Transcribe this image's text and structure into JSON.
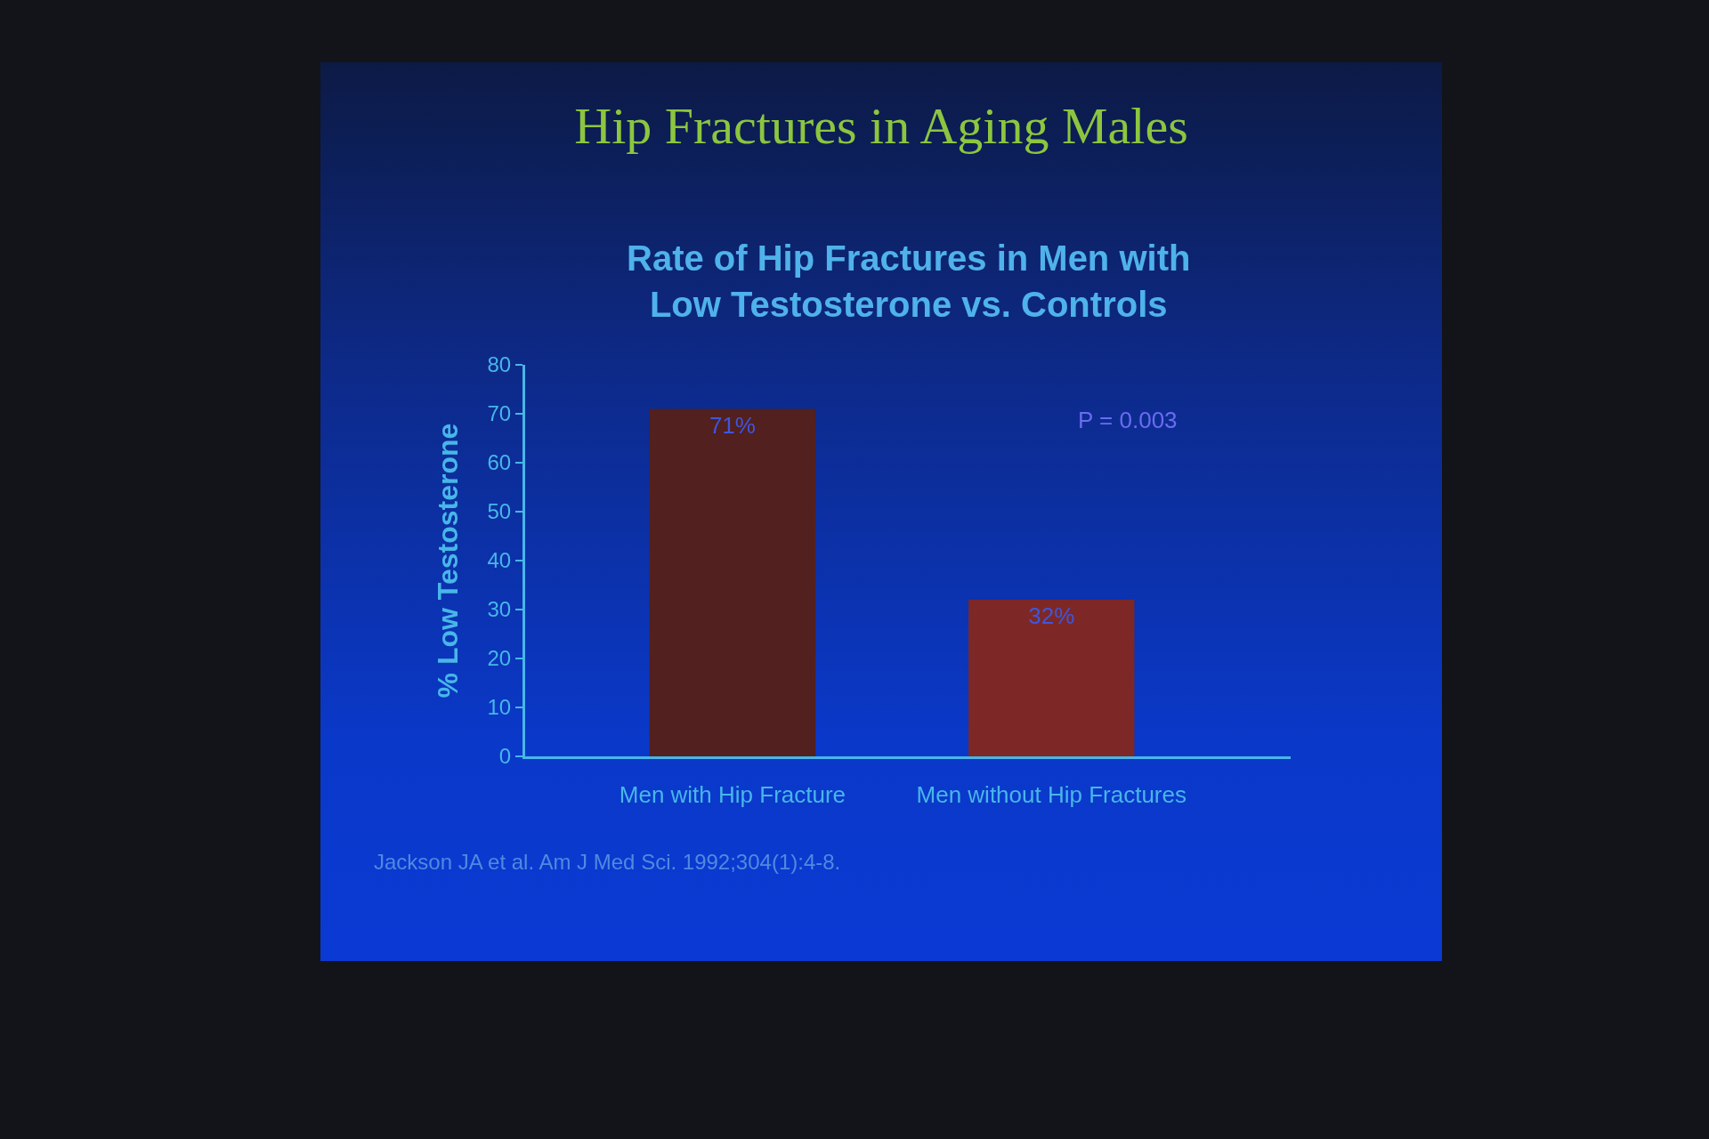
{
  "chart_data": {
    "type": "bar",
    "title": "Hip Fractures in Aging Males",
    "subtitle": "Rate of Hip Fractures in Men with Low Testosterone vs. Controls",
    "ylabel": "% Low Testosterone",
    "categories": [
      "Men with Hip Fracture",
      "Men without Hip Fractures"
    ],
    "values": [
      71,
      32
    ],
    "colors": [
      "#52201f",
      "#7d2826"
    ],
    "value_labels": [
      "71%",
      "32%"
    ],
    "ylim": [
      0,
      80
    ],
    "yticks": [
      0,
      10,
      20,
      30,
      40,
      50,
      60,
      70,
      80
    ],
    "annotations": [
      "P = 0.003",
      "Jackson JA et al. Am J Med Sci. 1992;304(1):4-8."
    ]
  }
}
